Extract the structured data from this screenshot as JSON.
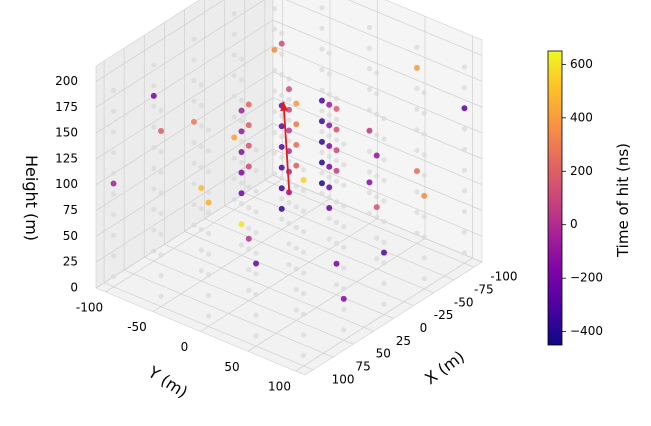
{
  "chart_data": {
    "type": "scatter3d",
    "title": "",
    "xlabel": "X (m)",
    "ylabel": "Y (m)",
    "zlabel": "Height (m)",
    "xlim": [
      -110,
      110
    ],
    "ylim": [
      -110,
      110
    ],
    "zlim": [
      0,
      215
    ],
    "x_ticks": [
      -100,
      -75,
      -50,
      -25,
      0,
      25,
      50,
      75,
      100
    ],
    "y_ticks": [
      -100,
      -50,
      0,
      50,
      100
    ],
    "z_ticks": [
      0,
      25,
      50,
      75,
      100,
      125,
      150,
      175,
      200
    ],
    "grid": true,
    "colormap": "plasma",
    "colorbar": {
      "label": "Time of hit (ns)",
      "min": -450,
      "max": 650,
      "ticks": [
        -400,
        -200,
        0,
        200,
        400,
        600
      ]
    },
    "detector_strings": [
      [
        -100,
        -100
      ],
      [
        -100,
        -50
      ],
      [
        -100,
        0
      ],
      [
        -100,
        50
      ],
      [
        -100,
        100
      ],
      [
        -50,
        -100
      ],
      [
        -50,
        -50
      ],
      [
        -50,
        0
      ],
      [
        -50,
        50
      ],
      [
        -50,
        100
      ],
      [
        0,
        -100
      ],
      [
        0,
        -50
      ],
      [
        0,
        0
      ],
      [
        0,
        50
      ],
      [
        0,
        100
      ],
      [
        50,
        -100
      ],
      [
        50,
        -50
      ],
      [
        50,
        0
      ],
      [
        50,
        50
      ],
      [
        50,
        100
      ],
      [
        100,
        -100
      ],
      [
        100,
        -50
      ],
      [
        100,
        0
      ],
      [
        100,
        50
      ],
      [
        100,
        100
      ]
    ],
    "module_heights": [
      10,
      30,
      50,
      70,
      90,
      110,
      130,
      150,
      170,
      190
    ],
    "unhit_color": "#d9d9d9",
    "track": {
      "color": "#e41a1c",
      "start": [
        -95,
        -80,
        0
      ],
      "end": [
        60,
        45,
        215
      ]
    },
    "hits": [
      {
        "x": -100,
        "y": -50,
        "z": 20,
        "t": -420
      },
      {
        "x": -100,
        "y": -50,
        "z": 40,
        "t": -400
      },
      {
        "x": -100,
        "y": -50,
        "z": 60,
        "t": -380
      },
      {
        "x": -100,
        "y": -50,
        "z": 80,
        "t": -350
      },
      {
        "x": -100,
        "y": -50,
        "z": 100,
        "t": -320
      },
      {
        "x": -50,
        "y": -50,
        "z": 20,
        "t": -360
      },
      {
        "x": -50,
        "y": -50,
        "z": 40,
        "t": -330
      },
      {
        "x": -50,
        "y": -50,
        "z": 60,
        "t": -300
      },
      {
        "x": -50,
        "y": -50,
        "z": 80,
        "t": -270
      },
      {
        "x": -50,
        "y": -50,
        "z": 100,
        "t": -240
      },
      {
        "x": -50,
        "y": -50,
        "z": 120,
        "t": -200
      },
      {
        "x": -50,
        "y": 0,
        "z": 40,
        "t": -250
      },
      {
        "x": -50,
        "y": 0,
        "z": 60,
        "t": -220
      },
      {
        "x": -50,
        "y": 0,
        "z": 80,
        "t": -190
      },
      {
        "x": -50,
        "y": 0,
        "z": 100,
        "t": -160
      },
      {
        "x": -50,
        "y": 0,
        "z": 120,
        "t": -120
      },
      {
        "x": -50,
        "y": 0,
        "z": 140,
        "t": -80
      },
      {
        "x": 0,
        "y": -50,
        "z": 60,
        "t": -200
      },
      {
        "x": 0,
        "y": -50,
        "z": 80,
        "t": -170
      },
      {
        "x": 0,
        "y": -50,
        "z": 100,
        "t": -130
      },
      {
        "x": 0,
        "y": -50,
        "z": 120,
        "t": -90
      },
      {
        "x": 0,
        "y": -50,
        "z": 140,
        "t": -50
      },
      {
        "x": 0,
        "y": 0,
        "z": 80,
        "t": -80
      },
      {
        "x": 0,
        "y": 0,
        "z": 100,
        "t": -40
      },
      {
        "x": 0,
        "y": 0,
        "z": 120,
        "t": 0
      },
      {
        "x": 0,
        "y": 0,
        "z": 140,
        "t": 40
      },
      {
        "x": 0,
        "y": 0,
        "z": 160,
        "t": 80
      },
      {
        "x": 0,
        "y": 0,
        "z": 180,
        "t": 120
      },
      {
        "x": 0,
        "y": 50,
        "z": 120,
        "t": 60
      },
      {
        "x": 0,
        "y": 50,
        "z": 140,
        "t": 100
      },
      {
        "x": 0,
        "y": 50,
        "z": 160,
        "t": 140
      },
      {
        "x": 0,
        "y": 50,
        "z": 180,
        "t": 180
      },
      {
        "x": 50,
        "y": 0,
        "z": 130,
        "t": 120
      },
      {
        "x": 50,
        "y": 0,
        "z": 150,
        "t": 160
      },
      {
        "x": 50,
        "y": 0,
        "z": 170,
        "t": 200
      },
      {
        "x": 50,
        "y": 0,
        "z": 190,
        "t": 240
      },
      {
        "x": 50,
        "y": 50,
        "z": 150,
        "t": 200
      },
      {
        "x": 50,
        "y": 50,
        "z": 170,
        "t": 250
      },
      {
        "x": 50,
        "y": 50,
        "z": 190,
        "t": 300
      },
      {
        "x": 50,
        "y": 50,
        "z": 210,
        "t": 380
      },
      {
        "x": -100,
        "y": 0,
        "z": 40,
        "t": -150
      },
      {
        "x": -100,
        "y": 0,
        "z": 90,
        "t": 50
      },
      {
        "x": -100,
        "y": 50,
        "z": 70,
        "t": 250
      },
      {
        "x": -100,
        "y": 100,
        "z": 150,
        "t": -250
      },
      {
        "x": -50,
        "y": 50,
        "z": 60,
        "t": 150
      },
      {
        "x": -50,
        "y": 50,
        "z": 110,
        "t": -100
      },
      {
        "x": -50,
        "y": 100,
        "z": 90,
        "t": 350
      },
      {
        "x": -50,
        "y": -100,
        "z": 70,
        "t": 420
      },
      {
        "x": 0,
        "y": -100,
        "z": 110,
        "t": 300
      },
      {
        "x": 0,
        "y": 100,
        "z": 60,
        "t": -300
      },
      {
        "x": 50,
        "y": -50,
        "z": 90,
        "t": 500
      },
      {
        "x": 50,
        "y": -100,
        "z": 160,
        "t": -200
      },
      {
        "x": 100,
        "y": 0,
        "z": 120,
        "t": 450
      },
      {
        "x": 100,
        "y": 50,
        "z": 80,
        "t": -250
      },
      {
        "x": 100,
        "y": -50,
        "z": 170,
        "t": 200
      },
      {
        "x": 50,
        "y": 100,
        "z": 40,
        "t": -150
      },
      {
        "x": 100,
        "y": 100,
        "z": 180,
        "t": 550
      },
      {
        "x": -100,
        "y": -100,
        "z": 130,
        "t": 350
      },
      {
        "x": 0,
        "y": -50,
        "z": 30,
        "t": 600
      },
      {
        "x": -50,
        "y": -50,
        "z": 180,
        "t": 120
      },
      {
        "x": 0,
        "y": 50,
        "z": 30,
        "t": -180
      },
      {
        "x": 50,
        "y": 0,
        "z": 60,
        "t": 20
      },
      {
        "x": -100,
        "y": 50,
        "z": 170,
        "t": 400
      },
      {
        "x": 100,
        "y": -100,
        "z": 100,
        "t": -50
      }
    ]
  }
}
